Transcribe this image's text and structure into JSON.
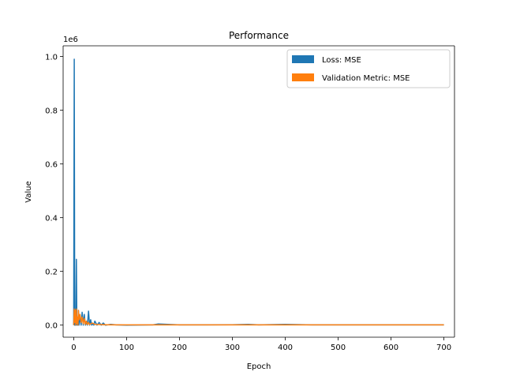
{
  "chart_data": {
    "type": "line",
    "title": "Performance",
    "xlabel": "Epoch",
    "ylabel": "Value",
    "y_offset_text": "1e6",
    "y_scale_factor": 1000000,
    "xlim": [
      -20,
      720
    ],
    "ylim": [
      -45000,
      1040000
    ],
    "x_ticks": [
      0,
      100,
      200,
      300,
      400,
      500,
      600,
      700
    ],
    "x_tick_labels": [
      "0",
      "100",
      "200",
      "300",
      "400",
      "500",
      "600",
      "700"
    ],
    "y_ticks": [
      0,
      200000,
      400000,
      600000,
      800000,
      1000000
    ],
    "y_tick_labels": [
      "0.0",
      "0.2",
      "0.4",
      "0.6",
      "0.8",
      "1.0"
    ],
    "grid": false,
    "legend_position": "top-right",
    "series": [
      {
        "name": "Loss: MSE",
        "color": "#1f77b4",
        "x": [
          0,
          1,
          2,
          3,
          4,
          5,
          6,
          7,
          8,
          9,
          10,
          12,
          14,
          16,
          18,
          20,
          22,
          24,
          26,
          28,
          30,
          32,
          34,
          36,
          38,
          40,
          44,
          48,
          52,
          56,
          60,
          70,
          80,
          100,
          150,
          160,
          200,
          250,
          300,
          330,
          350,
          400,
          450,
          500,
          550,
          600,
          650,
          700
        ],
        "y": [
          0,
          990000,
          0,
          0,
          10000,
          245000,
          0,
          15000,
          0,
          55000,
          0,
          30000,
          0,
          48000,
          0,
          40000,
          0,
          10000,
          0,
          52000,
          0,
          20000,
          0,
          5000,
          0,
          15000,
          0,
          10000,
          0,
          8000,
          0,
          3000,
          1000,
          0,
          1000,
          4000,
          1000,
          1000,
          1500,
          3000,
          1000,
          2500,
          1000,
          1000,
          1000,
          1000,
          1000,
          1000
        ]
      },
      {
        "name": "Validation Metric: MSE",
        "color": "#ff7f0e",
        "x": [
          0,
          1,
          2,
          3,
          4,
          5,
          6,
          7,
          8,
          9,
          10,
          12,
          14,
          16,
          18,
          20,
          22,
          24,
          26,
          28,
          30,
          35,
          40,
          50,
          60,
          80,
          100,
          200,
          300,
          400,
          500,
          600,
          700
        ],
        "y": [
          0,
          60000,
          10000,
          55000,
          0,
          60000,
          5000,
          30000,
          0,
          55000,
          20000,
          40000,
          10000,
          30000,
          5000,
          25000,
          3000,
          15000,
          2000,
          10000,
          2000,
          8000,
          3000,
          2000,
          1500,
          1000,
          1000,
          1000,
          1000,
          1000,
          1000,
          1000,
          1000
        ]
      }
    ]
  }
}
